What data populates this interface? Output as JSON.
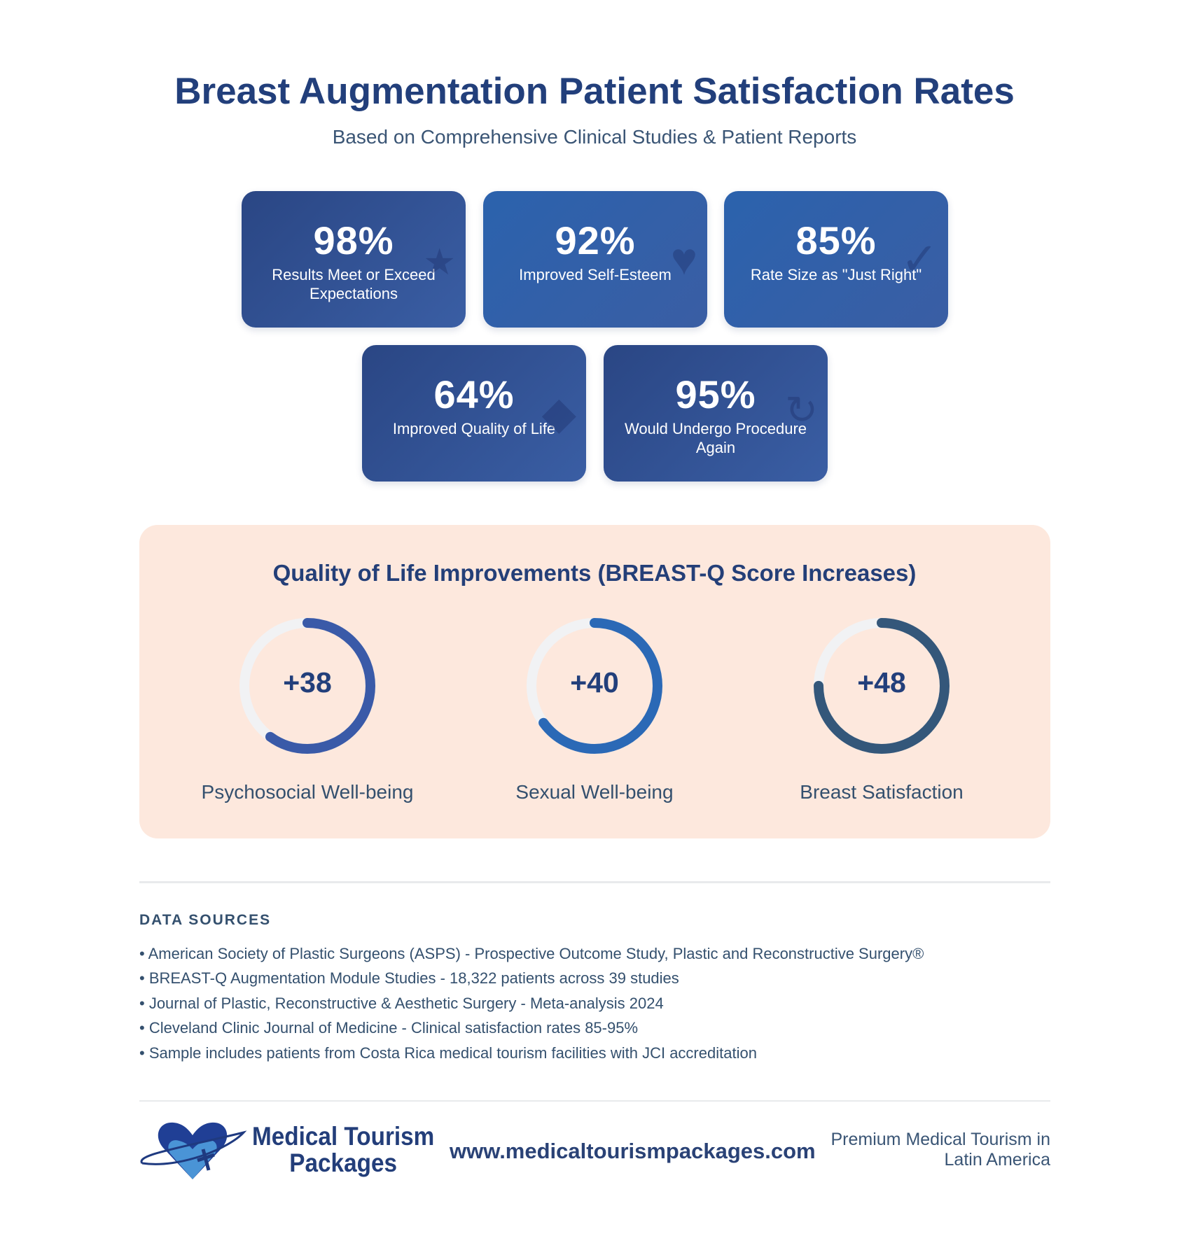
{
  "header": {
    "title": "Breast Augmentation Patient Satisfaction Rates",
    "subtitle": "Based on Comprehensive Clinical Studies & Patient Reports"
  },
  "stats": [
    {
      "value": "98%",
      "label": "Results Meet or Exceed Expectations",
      "icon": "star-icon"
    },
    {
      "value": "92%",
      "label": "Improved Self-Esteem",
      "icon": "heart-icon"
    },
    {
      "value": "85%",
      "label": "Rate Size as \"Just Right\"",
      "icon": "checkmark-icon"
    },
    {
      "value": "64%",
      "label": "Improved Quality of Life",
      "icon": "diamond-icon"
    },
    {
      "value": "95%",
      "label": "Would Undergo Procedure Again",
      "icon": "refresh-icon"
    }
  ],
  "qol": {
    "title": "Quality of Life Improvements (BREAST-Q Score Increases)",
    "items": [
      {
        "value": "+38",
        "label": "Psychosocial Well-being",
        "progress": 0.6,
        "color": "#3a5aa8"
      },
      {
        "value": "+40",
        "label": "Sexual Well-being",
        "progress": 0.65,
        "color": "#2b69b6"
      },
      {
        "value": "+48",
        "label": "Breast Satisfaction",
        "progress": 0.75,
        "color": "#34577a"
      }
    ],
    "track_color": "#f1f2f4"
  },
  "sources": {
    "heading": "DATA SOURCES",
    "items": [
      "• American Society of Plastic Surgeons (ASPS) - Prospective Outcome Study, Plastic and Reconstructive Surgery®",
      "• BREAST-Q Augmentation Module Studies - 18,322 patients across 39 studies",
      "• Journal of Plastic, Reconstructive & Aesthetic Surgery - Meta-analysis 2024",
      "• Cleveland Clinic Journal of Medicine - Clinical satisfaction rates 85-95%",
      "• Sample includes patients from Costa Rica medical tourism facilities with JCI accreditation"
    ]
  },
  "footer": {
    "brand_line1": "Medical Tourism",
    "brand_line2": "Packages",
    "url": "www.medicaltourismpackages.com",
    "tagline_line1": "Premium Medical Tourism in",
    "tagline_line2": "Latin America"
  }
}
